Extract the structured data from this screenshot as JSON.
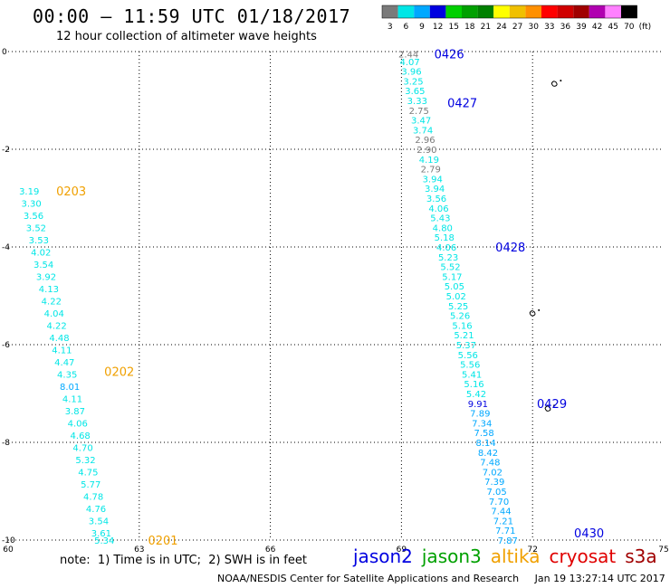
{
  "title": "00:00 – 11:59 UTC 01/18/2017",
  "subtitle": "12 hour collection of altimeter wave heights",
  "color_scale": {
    "ticks": [
      "3",
      "6",
      "9",
      "12",
      "15",
      "18",
      "21",
      "24",
      "27",
      "30",
      "33",
      "36",
      "39",
      "42",
      "45",
      "70",
      "(ft)"
    ],
    "colors": [
      "#7a7a7a",
      "#00e6e6",
      "#00a8ff",
      "#0000e0",
      "#00d000",
      "#00a000",
      "#008000",
      "#ffff00",
      "#f0c000",
      "#ff9000",
      "#ff0000",
      "#d00000",
      "#a00000",
      "#b000b0",
      "#ff80ff",
      "#000000"
    ]
  },
  "axes": {
    "x_ticks": [
      "60",
      "63",
      "66",
      "69",
      "72",
      "75"
    ],
    "y_ticks": [
      "0",
      "-2",
      "-4",
      "-6",
      "-8",
      "-10"
    ]
  },
  "tracks": [
    {
      "satellite": "jason3",
      "labels": [
        {
          "text": "0203",
          "lat": -2.85,
          "lon": 61.1
        },
        {
          "text": "0202",
          "lat": -6.55,
          "lon": 62.2
        },
        {
          "text": "0201",
          "lat": -10.0,
          "lon": 63.2
        }
      ],
      "points": [
        {
          "lat": -2.85,
          "lon": 60.25,
          "v": "3.19",
          "c": "#00e6e6"
        },
        {
          "lat": -3.1,
          "lon": 60.3,
          "v": "3.30",
          "c": "#00e6e6"
        },
        {
          "lat": -3.35,
          "lon": 60.35,
          "v": "3.56",
          "c": "#00e6e6"
        },
        {
          "lat": -3.6,
          "lon": 60.41,
          "v": "3.52",
          "c": "#00e6e6"
        },
        {
          "lat": -3.85,
          "lon": 60.47,
          "v": "3.53",
          "c": "#00e6e6"
        },
        {
          "lat": -4.1,
          "lon": 60.52,
          "v": "4.02",
          "c": "#00e6e6"
        },
        {
          "lat": -4.35,
          "lon": 60.58,
          "v": "3.54",
          "c": "#00e6e6"
        },
        {
          "lat": -4.6,
          "lon": 60.64,
          "v": "3.92",
          "c": "#00e6e6"
        },
        {
          "lat": -4.85,
          "lon": 60.7,
          "v": "4.13",
          "c": "#00e6e6"
        },
        {
          "lat": -5.1,
          "lon": 60.76,
          "v": "4.22",
          "c": "#00e6e6"
        },
        {
          "lat": -5.35,
          "lon": 60.82,
          "v": "4.04",
          "c": "#00e6e6"
        },
        {
          "lat": -5.6,
          "lon": 60.88,
          "v": "4.22",
          "c": "#00e6e6"
        },
        {
          "lat": -5.85,
          "lon": 60.94,
          "v": "4.48",
          "c": "#00e6e6"
        },
        {
          "lat": -6.1,
          "lon": 61.0,
          "v": "4.11",
          "c": "#00e6e6"
        },
        {
          "lat": -6.35,
          "lon": 61.06,
          "v": "4.47",
          "c": "#00e6e6"
        },
        {
          "lat": -6.6,
          "lon": 61.12,
          "v": "4.35",
          "c": "#00e6e6"
        },
        {
          "lat": -6.85,
          "lon": 61.18,
          "v": "8.01",
          "c": "#00a8ff"
        },
        {
          "lat": -7.1,
          "lon": 61.24,
          "v": "4.11",
          "c": "#00e6e6"
        },
        {
          "lat": -7.35,
          "lon": 61.3,
          "v": "3.87",
          "c": "#00e6e6"
        },
        {
          "lat": -7.6,
          "lon": 61.36,
          "v": "4.06",
          "c": "#00e6e6"
        },
        {
          "lat": -7.85,
          "lon": 61.42,
          "v": "4.68",
          "c": "#00e6e6"
        },
        {
          "lat": -8.1,
          "lon": 61.48,
          "v": "4.70",
          "c": "#00e6e6"
        },
        {
          "lat": -8.35,
          "lon": 61.54,
          "v": "5.32",
          "c": "#00e6e6"
        },
        {
          "lat": -8.6,
          "lon": 61.6,
          "v": "4.75",
          "c": "#00e6e6"
        },
        {
          "lat": -8.85,
          "lon": 61.66,
          "v": "5.77",
          "c": "#00e6e6"
        },
        {
          "lat": -9.1,
          "lon": 61.72,
          "v": "4.78",
          "c": "#00e6e6"
        },
        {
          "lat": -9.35,
          "lon": 61.78,
          "v": "4.76",
          "c": "#00e6e6"
        },
        {
          "lat": -9.6,
          "lon": 61.84,
          "v": "3.54",
          "c": "#00e6e6"
        },
        {
          "lat": -9.85,
          "lon": 61.9,
          "v": "3.61",
          "c": "#00e6e6"
        },
        {
          "lat": -10.0,
          "lon": 61.97,
          "v": "5.34",
          "c": "#00e6e6"
        }
      ]
    },
    {
      "satellite": "jason2",
      "labels": [
        {
          "text": "0426",
          "lat": -0.05,
          "lon": 69.75
        },
        {
          "text": "0427",
          "lat": -1.05,
          "lon": 70.05
        },
        {
          "text": "0428",
          "lat": -4.0,
          "lon": 71.15
        },
        {
          "text": "0429",
          "lat": -7.2,
          "lon": 72.1
        },
        {
          "text": "0430",
          "lat": -9.85,
          "lon": 72.95
        }
      ],
      "points": [
        {
          "lat": -0.05,
          "lon": 68.93,
          "v": "2.44",
          "c": "#7a7a7a"
        },
        {
          "lat": -0.2,
          "lon": 68.96,
          "v": "4.07",
          "c": "#00e6e6"
        },
        {
          "lat": -0.4,
          "lon": 69.0,
          "v": "3.96",
          "c": "#00e6e6"
        },
        {
          "lat": -0.6,
          "lon": 69.04,
          "v": "3.25",
          "c": "#00e6e6"
        },
        {
          "lat": -0.8,
          "lon": 69.08,
          "v": "3.65",
          "c": "#00e6e6"
        },
        {
          "lat": -1.0,
          "lon": 69.13,
          "v": "3.33",
          "c": "#00e6e6"
        },
        {
          "lat": -1.2,
          "lon": 69.17,
          "v": "2.75",
          "c": "#7a7a7a"
        },
        {
          "lat": -1.4,
          "lon": 69.22,
          "v": "3.47",
          "c": "#00e6e6"
        },
        {
          "lat": -1.6,
          "lon": 69.26,
          "v": "3.74",
          "c": "#00e6e6"
        },
        {
          "lat": -1.8,
          "lon": 69.31,
          "v": "2.96",
          "c": "#7a7a7a"
        },
        {
          "lat": -2.0,
          "lon": 69.35,
          "v": "2.90",
          "c": "#7a7a7a"
        },
        {
          "lat": -2.2,
          "lon": 69.4,
          "v": "4.19",
          "c": "#00e6e6"
        },
        {
          "lat": -2.4,
          "lon": 69.44,
          "v": "2.79",
          "c": "#7a7a7a"
        },
        {
          "lat": -2.6,
          "lon": 69.48,
          "v": "3.94",
          "c": "#00e6e6"
        },
        {
          "lat": -2.8,
          "lon": 69.53,
          "v": "3.94",
          "c": "#00e6e6"
        },
        {
          "lat": -3.0,
          "lon": 69.57,
          "v": "3.56",
          "c": "#00e6e6"
        },
        {
          "lat": -3.2,
          "lon": 69.62,
          "v": "4.06",
          "c": "#00e6e6"
        },
        {
          "lat": -3.4,
          "lon": 69.66,
          "v": "5.43",
          "c": "#00e6e6"
        },
        {
          "lat": -3.6,
          "lon": 69.71,
          "v": "4.80",
          "c": "#00e6e6"
        },
        {
          "lat": -3.8,
          "lon": 69.75,
          "v": "5.18",
          "c": "#00e6e6"
        },
        {
          "lat": -4.0,
          "lon": 69.8,
          "v": "4.06",
          "c": "#00e6e6"
        },
        {
          "lat": -4.2,
          "lon": 69.84,
          "v": "5.23",
          "c": "#00e6e6"
        },
        {
          "lat": -4.4,
          "lon": 69.89,
          "v": "5.52",
          "c": "#00e6e6"
        },
        {
          "lat": -4.6,
          "lon": 69.93,
          "v": "5.17",
          "c": "#00e6e6"
        },
        {
          "lat": -4.8,
          "lon": 69.98,
          "v": "5.05",
          "c": "#00e6e6"
        },
        {
          "lat": -5.0,
          "lon": 70.02,
          "v": "5.02",
          "c": "#00e6e6"
        },
        {
          "lat": -5.2,
          "lon": 70.07,
          "v": "5.25",
          "c": "#00e6e6"
        },
        {
          "lat": -5.4,
          "lon": 70.11,
          "v": "5.26",
          "c": "#00e6e6"
        },
        {
          "lat": -5.6,
          "lon": 70.16,
          "v": "5.16",
          "c": "#00e6e6"
        },
        {
          "lat": -5.8,
          "lon": 70.2,
          "v": "5.21",
          "c": "#00e6e6"
        },
        {
          "lat": -6.0,
          "lon": 70.25,
          "v": "5.37",
          "c": "#00e6e6"
        },
        {
          "lat": -6.2,
          "lon": 70.29,
          "v": "5.56",
          "c": "#00e6e6"
        },
        {
          "lat": -6.4,
          "lon": 70.34,
          "v": "5.56",
          "c": "#00e6e6"
        },
        {
          "lat": -6.6,
          "lon": 70.38,
          "v": "5.41",
          "c": "#00e6e6"
        },
        {
          "lat": -6.8,
          "lon": 70.43,
          "v": "5.16",
          "c": "#00e6e6"
        },
        {
          "lat": -7.0,
          "lon": 70.48,
          "v": "5.42",
          "c": "#00e6e6"
        },
        {
          "lat": -7.2,
          "lon": 70.52,
          "v": "9.91",
          "c": "#0000e0"
        },
        {
          "lat": -7.4,
          "lon": 70.57,
          "v": "7.89",
          "c": "#00a8ff"
        },
        {
          "lat": -7.6,
          "lon": 70.61,
          "v": "7.34",
          "c": "#00a8ff"
        },
        {
          "lat": -7.8,
          "lon": 70.66,
          "v": "7.58",
          "c": "#00a8ff"
        },
        {
          "lat": -8.0,
          "lon": 70.7,
          "v": "8.14",
          "c": "#00a8ff"
        },
        {
          "lat": -8.2,
          "lon": 70.75,
          "v": "8.42",
          "c": "#00a8ff"
        },
        {
          "lat": -8.4,
          "lon": 70.8,
          "v": "7.48",
          "c": "#00a8ff"
        },
        {
          "lat": -8.6,
          "lon": 70.85,
          "v": "7.02",
          "c": "#00a8ff"
        },
        {
          "lat": -8.8,
          "lon": 70.9,
          "v": "7.39",
          "c": "#00a8ff"
        },
        {
          "lat": -9.0,
          "lon": 70.95,
          "v": "7.05",
          "c": "#00a8ff"
        },
        {
          "lat": -9.2,
          "lon": 71.0,
          "v": "7.70",
          "c": "#00a8ff"
        },
        {
          "lat": -9.4,
          "lon": 71.05,
          "v": "7.44",
          "c": "#00a8ff"
        },
        {
          "lat": -9.6,
          "lon": 71.1,
          "v": "7.21",
          "c": "#00a8ff"
        },
        {
          "lat": -9.8,
          "lon": 71.15,
          "v": "7.71",
          "c": "#00a8ff"
        },
        {
          "lat": -10.0,
          "lon": 71.2,
          "v": "7.87",
          "c": "#00a8ff"
        }
      ]
    }
  ],
  "islands": [
    {
      "name": "island-northeast",
      "lat": -0.65,
      "lon": 72.5
    },
    {
      "name": "island-central",
      "lat": -5.35,
      "lon": 72.0
    },
    {
      "name": "island-southeast",
      "lat": -7.3,
      "lon": 72.35
    }
  ],
  "note": "note:  1) Time is in UTC;  2) SWH is in feet",
  "satellites": [
    {
      "name": "jason2",
      "color": "#0000e0"
    },
    {
      "name": "jason3",
      "color": "#00a000"
    },
    {
      "name": "altika",
      "color": "#f0a000"
    },
    {
      "name": "cryosat",
      "color": "#e00000"
    },
    {
      "name": "s3a",
      "color": "#a00000"
    }
  ],
  "credit": "NOAA/NESDIS Center for Satellite Applications and Research     Jan 19 13:27:14 UTC 2017"
}
